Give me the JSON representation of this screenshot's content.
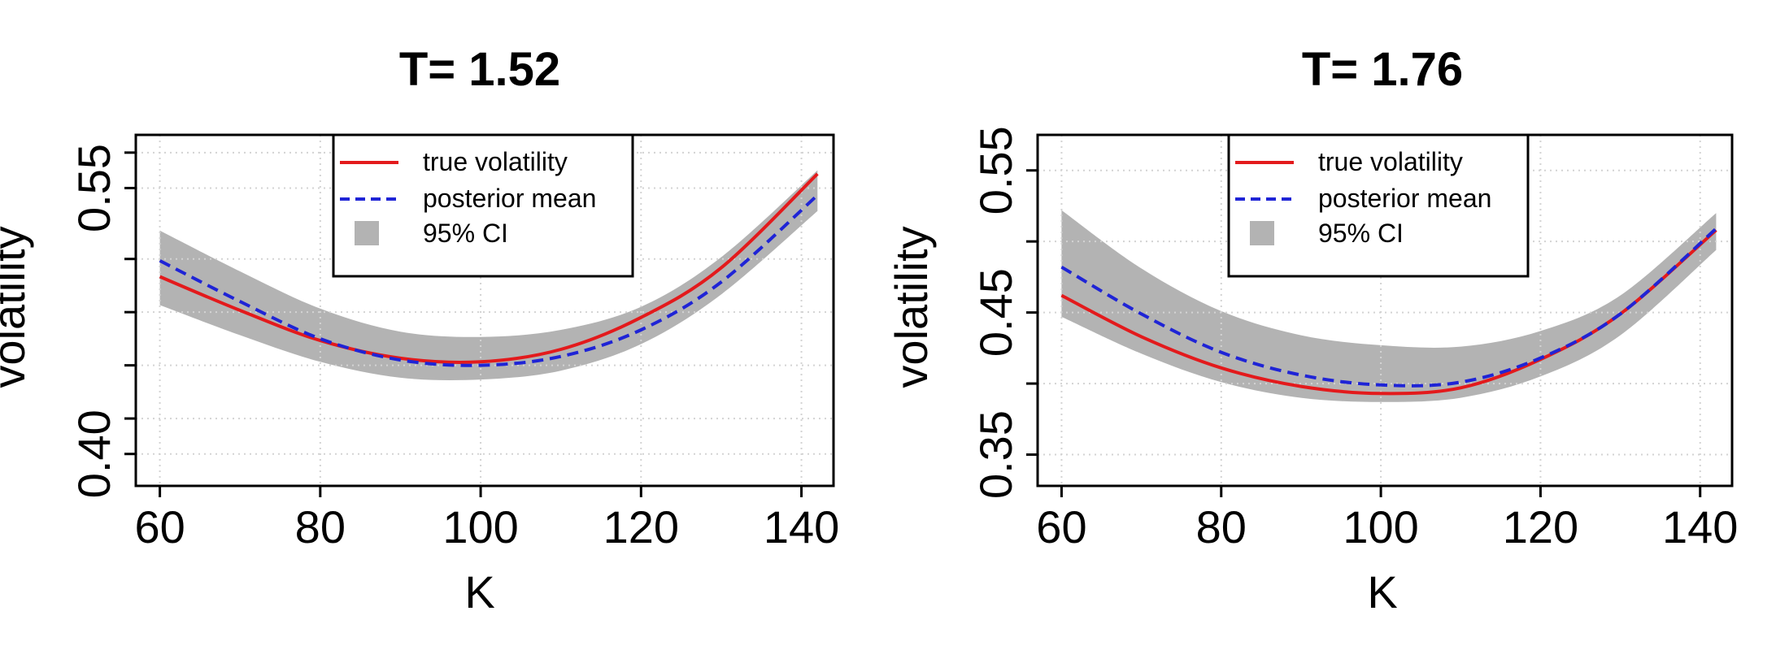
{
  "chart_data": [
    {
      "type": "line",
      "title": "T= 1.52",
      "xlabel": "K",
      "ylabel": "volatility",
      "xlim": [
        57,
        144
      ],
      "ylim": [
        0.382,
        0.58
      ],
      "xticks": [
        60,
        80,
        100,
        120,
        140
      ],
      "xtick_labels": [
        "60",
        "80",
        "100",
        "120",
        "140"
      ],
      "yticks": [
        0.4,
        0.55
      ],
      "ytick_labels": [
        "0.40",
        "0.55"
      ],
      "minor_yticks": [
        0.42,
        0.45,
        0.48,
        0.51,
        0.57
      ],
      "grid": true,
      "legend": {
        "position": "top-center",
        "labels": [
          "true volatility",
          "posterior mean",
          "95% CI"
        ]
      },
      "x": [
        60,
        70,
        80,
        90,
        100,
        110,
        120,
        130,
        142
      ],
      "series": [
        {
          "name": "true volatility",
          "style": "solid",
          "color": "#e31a1c",
          "values": [
            0.5,
            0.481,
            0.464,
            0.454,
            0.452,
            0.459,
            0.477,
            0.505,
            0.558
          ]
        },
        {
          "name": "posterior mean",
          "style": "dashed",
          "color": "#1f24d6",
          "values": [
            0.509,
            0.486,
            0.465,
            0.453,
            0.45,
            0.455,
            0.47,
            0.497,
            0.546
          ]
        },
        {
          "name": "95% CI",
          "style": "band",
          "color": "#b3b3b3",
          "lower": [
            0.484,
            0.467,
            0.452,
            0.443,
            0.442,
            0.447,
            0.462,
            0.49,
            0.537
          ],
          "upper": [
            0.526,
            0.503,
            0.482,
            0.469,
            0.466,
            0.47,
            0.483,
            0.511,
            0.56
          ]
        }
      ]
    },
    {
      "type": "line",
      "title": "T= 1.76",
      "xlabel": "K",
      "ylabel": "volatility",
      "xlim": [
        57,
        144
      ],
      "ylim": [
        0.328,
        0.575
      ],
      "xticks": [
        60,
        80,
        100,
        120,
        140
      ],
      "xtick_labels": [
        "60",
        "80",
        "100",
        "120",
        "140"
      ],
      "yticks": [
        0.35,
        0.45,
        0.55
      ],
      "ytick_labels": [
        "0.35",
        "0.45",
        "0.55"
      ],
      "minor_yticks": [
        0.4,
        0.5
      ],
      "grid": true,
      "legend": {
        "position": "top-center",
        "labels": [
          "true volatility",
          "posterior mean",
          "95% CI"
        ]
      },
      "x": [
        60,
        70,
        80,
        90,
        100,
        110,
        120,
        130,
        142
      ],
      "series": [
        {
          "name": "true volatility",
          "style": "solid",
          "color": "#e31a1c",
          "values": [
            0.462,
            0.433,
            0.411,
            0.398,
            0.393,
            0.397,
            0.417,
            0.449,
            0.508
          ]
        },
        {
          "name": "posterior mean",
          "style": "dashed",
          "color": "#1f24d6",
          "values": [
            0.482,
            0.449,
            0.422,
            0.406,
            0.399,
            0.401,
            0.418,
            0.449,
            0.509
          ]
        },
        {
          "name": "95% CI",
          "style": "band",
          "color": "#b3b3b3",
          "lower": [
            0.447,
            0.421,
            0.401,
            0.39,
            0.387,
            0.39,
            0.405,
            0.434,
            0.494
          ],
          "upper": [
            0.522,
            0.481,
            0.451,
            0.434,
            0.427,
            0.426,
            0.437,
            0.462,
            0.52
          ]
        }
      ]
    }
  ]
}
